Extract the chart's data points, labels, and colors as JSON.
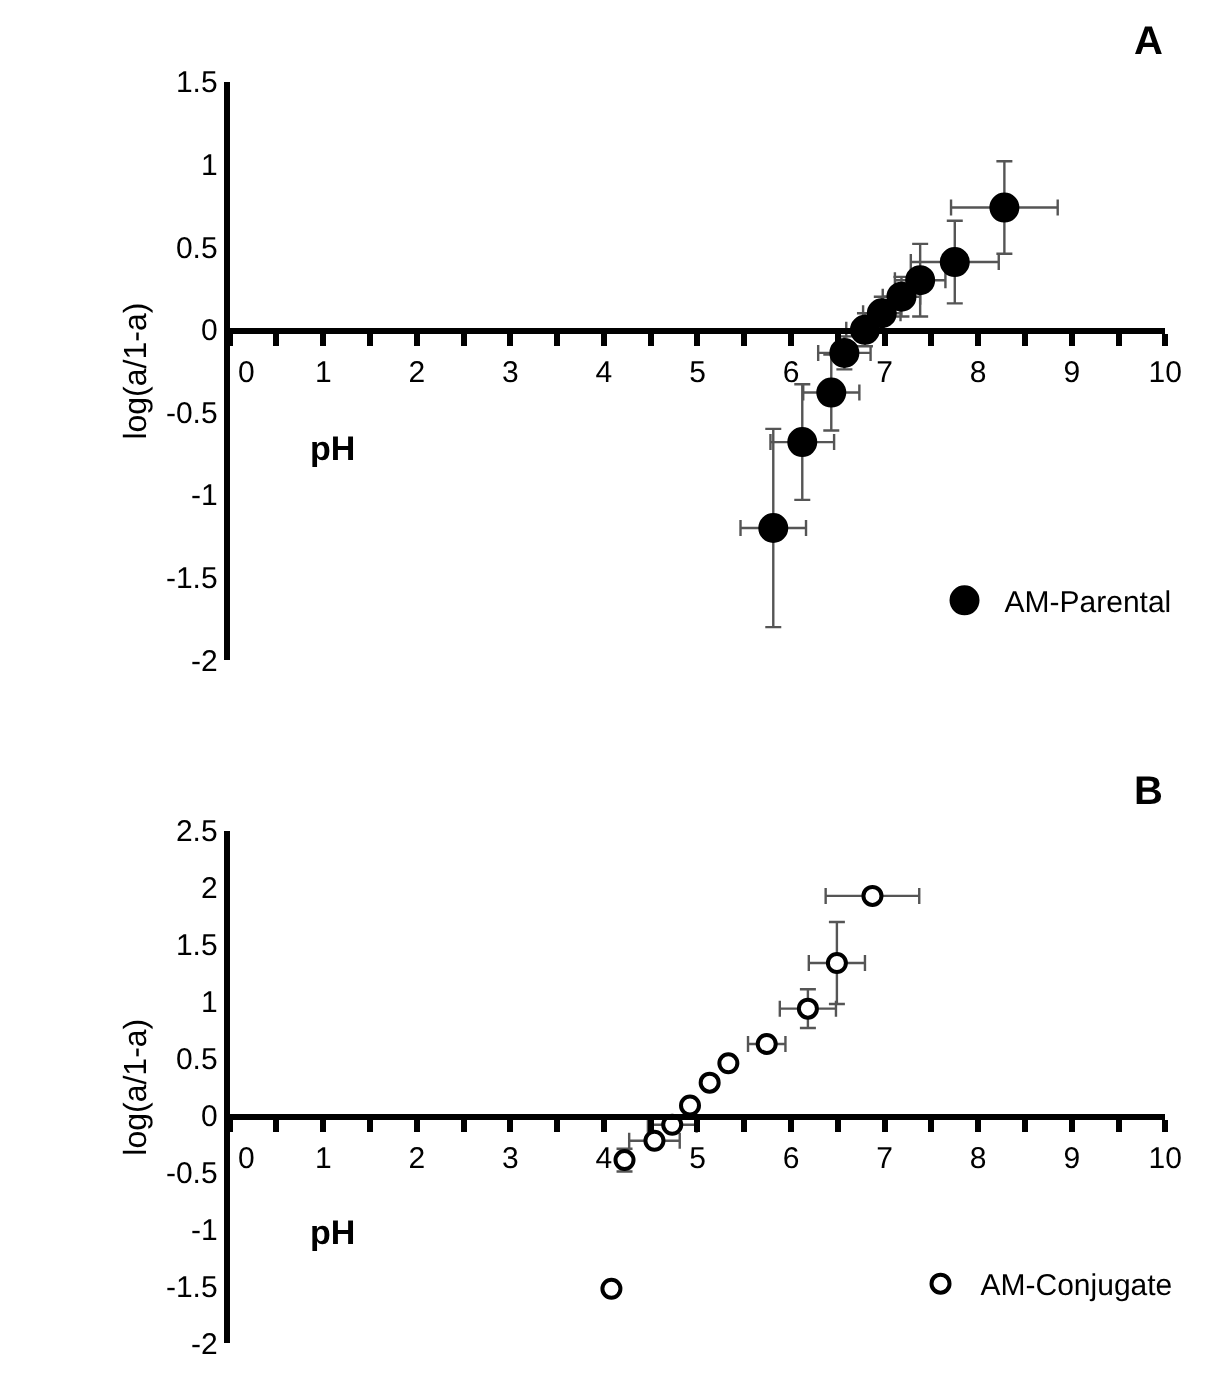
{
  "chart_data": [
    {
      "type": "scatter",
      "title": "A",
      "xlabel": "pH",
      "ylabel": "log(a/1-a)",
      "xlim": [
        0,
        10
      ],
      "ylim": [
        -2,
        1.5
      ],
      "xticks": [
        0,
        {
          "value": 0.5,
          "label": null
        },
        1,
        {
          "value": 1.5,
          "label": null
        },
        2,
        {
          "value": 2.5,
          "label": null
        },
        3,
        {
          "value": 3.5,
          "label": null
        },
        4,
        {
          "value": 4.5,
          "label": null
        },
        5,
        {
          "value": 5.5,
          "label": null
        },
        6,
        {
          "value": 6.5,
          "label": null
        },
        7,
        {
          "value": 7.5,
          "label": null
        },
        8,
        {
          "value": 8.5,
          "label": null
        },
        9,
        {
          "value": 9.5,
          "label": null
        },
        10
      ],
      "yticks": [
        -2,
        -1.5,
        -1,
        -0.5,
        0,
        0.5,
        1,
        1.5
      ],
      "marker": "circle",
      "legend": "bottom right",
      "series": [
        {
          "name": "AM-Parental",
          "color": "#000000",
          "x": [
            5.81,
            6.12,
            6.43,
            6.57,
            6.79,
            6.97,
            7.18,
            7.38,
            7.75,
            8.28
          ],
          "values": [
            -1.2,
            -0.68,
            -0.38,
            -0.14,
            0.0,
            0.1,
            0.2,
            0.3,
            0.41,
            0.74
          ],
          "errors": [
            0.6,
            0.35,
            0.23,
            0.1,
            0.1,
            0.1,
            0.12,
            0.22,
            0.25,
            0.28
          ],
          "xerrors": [
            0.35,
            0.34,
            0.3,
            0.28,
            0.2,
            0.2,
            0.2,
            0.27,
            0.47,
            0.57
          ]
        }
      ]
    },
    {
      "type": "scatter",
      "title": "B",
      "xlabel": "pH",
      "ylabel": "log(a/1-a)",
      "xlim": [
        0,
        10
      ],
      "ylim": [
        -2,
        2.5
      ],
      "xticks": [
        0,
        {
          "value": 0.5,
          "label": null
        },
        1,
        {
          "value": 1.5,
          "label": null
        },
        2,
        {
          "value": 2.5,
          "label": null
        },
        3,
        {
          "value": 3.5,
          "label": null
        },
        4,
        {
          "value": 4.5,
          "label": null
        },
        5,
        {
          "value": 5.5,
          "label": null
        },
        6,
        {
          "value": 6.5,
          "label": null
        },
        7,
        {
          "value": 7.5,
          "label": null
        },
        8,
        {
          "value": 8.5,
          "label": null
        },
        9,
        {
          "value": 9.5,
          "label": null
        },
        10
      ],
      "yticks": [
        -2,
        -1.5,
        -1,
        -0.5,
        0,
        0.5,
        1,
        1.5,
        2,
        2.5
      ],
      "marker": "circle",
      "legend": "bottom right",
      "series": [
        {
          "name": "AM-Conjugate",
          "color": "#ffffff",
          "x": [
            4.08,
            4.22,
            4.54,
            4.73,
            4.92,
            5.13,
            5.33,
            5.74,
            6.18,
            6.49,
            6.87
          ],
          "values": [
            -1.52,
            -0.39,
            -0.22,
            -0.08,
            0.09,
            0.29,
            0.46,
            0.63,
            0.94,
            1.34,
            1.93
          ],
          "errors": [
            null,
            0.1,
            null,
            null,
            null,
            null,
            null,
            null,
            0.17,
            0.36,
            null
          ],
          "xerrors": [
            null,
            null,
            0.27,
            0.26,
            null,
            null,
            null,
            0.2,
            0.3,
            0.3,
            0.5
          ]
        }
      ]
    }
  ]
}
